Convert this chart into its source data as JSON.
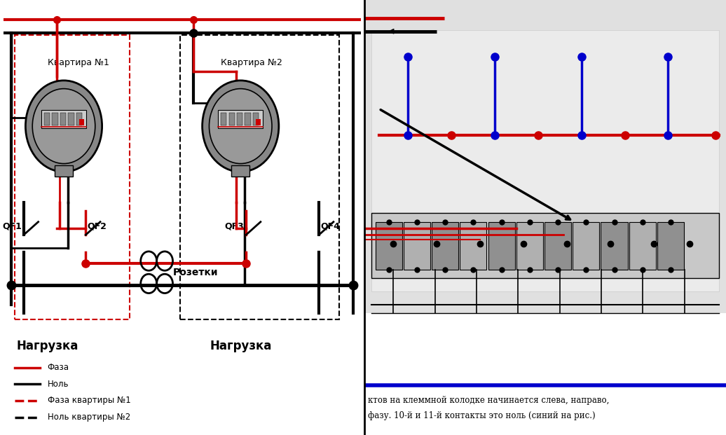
{
  "bg_color": "#ffffff",
  "title_apt1": "Квартира №1",
  "title_apt2": "Квартира №2",
  "label_nagr1": "Нагрузка",
  "label_nagr2": "Нагрузка",
  "label_rozetki": "Розетки",
  "legend_items": [
    {
      "label": "Фаза",
      "color": "#cc0000",
      "ls": "-"
    },
    {
      "label": "Ноль",
      "color": "#000000",
      "ls": "-"
    },
    {
      "label": "Фаза квартиры №1",
      "color": "#cc0000",
      "ls": "--"
    },
    {
      "label": "Ноль квартиры №2",
      "color": "#000000",
      "ls": "--"
    }
  ],
  "right_text1": "ктов на клеммной колодке начинается слева, направо,",
  "right_text2": "фазу. 10-й и 11-й контакты это ноль (синий на рис.)",
  "RED": "#cc0000",
  "BLACK": "#000000",
  "BLUE": "#0000cc",
  "GRAY1": "#888888",
  "GRAY2": "#aaaaaa",
  "GRAY3": "#cccccc",
  "GRAY4": "#999999",
  "LIGHTGRAY": "#d8d8d8",
  "MIDGRAY": "#c0c0c0"
}
